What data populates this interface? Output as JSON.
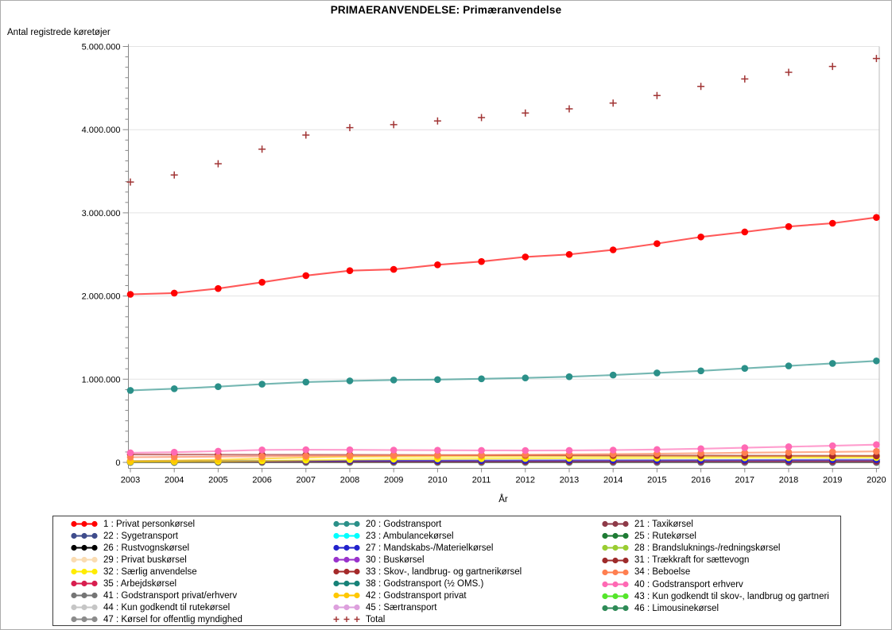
{
  "chart_data": {
    "type": "line",
    "title": "PRIMAERANVENDELSE: Primæranvendelse",
    "xlabel": "År",
    "ylabel": "Antal registrede køretøjer",
    "x": [
      2003,
      2004,
      2005,
      2006,
      2007,
      2008,
      2009,
      2010,
      2011,
      2012,
      2013,
      2014,
      2015,
      2016,
      2017,
      2018,
      2019,
      2020
    ],
    "ylim": [
      0,
      5000000
    ],
    "y_tick_labels": [
      "0",
      "1.000.000",
      "2.000.000",
      "3.000.000",
      "4.000.000",
      "5.000.000"
    ],
    "grid": "horizontal",
    "legend_position": "bottom",
    "series": [
      {
        "id": "1",
        "label": "1 : Privat personkørsel",
        "color": "#FF0000",
        "marker": "dot",
        "values": [
          2020000,
          2035000,
          2090000,
          2165000,
          2245000,
          2305000,
          2320000,
          2375000,
          2415000,
          2470000,
          2500000,
          2555000,
          2630000,
          2710000,
          2770000,
          2835000,
          2875000,
          2945000
        ]
      },
      {
        "id": "20",
        "label": "20 : Godstransport",
        "color": "#2B9089",
        "marker": "dot",
        "values": [
          865000,
          885000,
          910000,
          940000,
          965000,
          980000,
          990000,
          995000,
          1005000,
          1015000,
          1030000,
          1050000,
          1075000,
          1100000,
          1130000,
          1160000,
          1190000,
          1220000
        ]
      },
      {
        "id": "21",
        "label": "21 : Taxikørsel",
        "color": "#8E3A48",
        "marker": "dot",
        "values": [
          7000,
          7000,
          7000,
          7000,
          7000,
          7000,
          7000,
          7000,
          7000,
          7000,
          7000,
          7000,
          7000,
          7000,
          7000,
          7000,
          7000,
          7000
        ]
      },
      {
        "id": "22",
        "label": "22 : Sygetransport",
        "color": "#3F4C8C",
        "marker": "dot",
        "values": [
          1500,
          1500,
          1500,
          1500,
          1500,
          1500,
          1500,
          1500,
          1500,
          1500,
          1500,
          1500,
          1500,
          1500,
          1500,
          1500,
          1500,
          1500
        ]
      },
      {
        "id": "23",
        "label": "23 : Ambulancekørsel",
        "color": "#00FFFF",
        "marker": "dot",
        "values": [
          1000,
          1000,
          1000,
          1000,
          1000,
          1000,
          1000,
          1000,
          1000,
          1000,
          1000,
          1000,
          1000,
          1000,
          1000,
          1000,
          1000,
          1000
        ]
      },
      {
        "id": "25",
        "label": "25 : Rutekørsel",
        "color": "#1E7B34",
        "marker": "dot",
        "values": [
          8000,
          8000,
          8000,
          8000,
          8000,
          8000,
          8000,
          8000,
          8000,
          8000,
          8000,
          8000,
          8000,
          8000,
          8000,
          8000,
          8000,
          8000
        ]
      },
      {
        "id": "26",
        "label": "26 : Rustvognskørsel",
        "color": "#000000",
        "marker": "dot",
        "values": [
          600,
          600,
          600,
          600,
          600,
          600,
          600,
          600,
          600,
          600,
          600,
          600,
          600,
          600,
          600,
          600,
          600,
          600
        ]
      },
      {
        "id": "27",
        "label": "27 : Mandskabs-/Materielkørsel",
        "color": "#2222CC",
        "marker": "dot",
        "values": [
          14000,
          15000,
          16000,
          17000,
          18000,
          19000,
          20000,
          21000,
          22000,
          23000,
          24000,
          25000,
          26000,
          27000,
          28000,
          29000,
          30000,
          31000
        ]
      },
      {
        "id": "28",
        "label": "28 : Brandsluknings-/redningskørsel",
        "color": "#9ACD32",
        "marker": "dot",
        "values": [
          3000,
          3000,
          3000,
          3000,
          3000,
          3000,
          3000,
          3000,
          3000,
          3000,
          3000,
          3000,
          3000,
          3000,
          3000,
          3000,
          3000,
          3000
        ]
      },
      {
        "id": "29",
        "label": "29 : Privat buskørsel",
        "color": "#FADCB2",
        "marker": "dot",
        "values": [
          2000,
          2000,
          2000,
          2000,
          2000,
          2000,
          2000,
          2000,
          2000,
          2000,
          2000,
          2000,
          2000,
          2000,
          2000,
          2000,
          2000,
          2000
        ]
      },
      {
        "id": "30",
        "label": "30 : Buskørsel",
        "color": "#9933CC",
        "marker": "dot",
        "values": [
          12000,
          12000,
          12000,
          12000,
          12500,
          12500,
          12500,
          12500,
          12500,
          12500,
          12500,
          12500,
          12500,
          12500,
          12500,
          12500,
          12500,
          12500
        ]
      },
      {
        "id": "31",
        "label": "31 : Trækkraft for sættevogn",
        "color": "#9E2B2B",
        "marker": "dot",
        "values": [
          10000,
          10500,
          11000,
          11500,
          12000,
          12500,
          12500,
          12500,
          13000,
          13000,
          13500,
          14000,
          14500,
          15000,
          15500,
          16000,
          16000,
          16500
        ]
      },
      {
        "id": "32",
        "label": "32 : Særlig anvendelse",
        "color": "#FFEC00",
        "marker": "dot",
        "values": [
          8000,
          10000,
          13000,
          18000,
          25000,
          33000,
          38000,
          42000,
          45000,
          47000,
          49000,
          51000,
          52000,
          54000,
          55000,
          56000,
          57000,
          58000
        ]
      },
      {
        "id": "33",
        "label": "33 : Skov-, landbrug- og gartnerikørsel",
        "color": "#A52A2A",
        "marker": "dot",
        "values": [
          95000,
          94000,
          93000,
          92000,
          91000,
          90000,
          89000,
          88000,
          87000,
          86000,
          85000,
          84000,
          83000,
          82000,
          81000,
          80000,
          79000,
          78000
        ]
      },
      {
        "id": "34",
        "label": "34 : Beboelse",
        "color": "#FF7F50",
        "marker": "dot",
        "values": [
          62000,
          65000,
          68000,
          72000,
          76000,
          80000,
          83000,
          86000,
          89000,
          93000,
          96000,
          100000,
          105000,
          110000,
          116000,
          121000,
          126000,
          132000
        ]
      },
      {
        "id": "35",
        "label": "35 : Arbejdskørsel",
        "color": "#D81E4F",
        "marker": "dot",
        "values": [
          5000,
          5000,
          5000,
          5000,
          5000,
          5000,
          5000,
          5000,
          5000,
          5000,
          5000,
          5000,
          5000,
          5000,
          5000,
          5000,
          5000,
          5000
        ]
      },
      {
        "id": "38",
        "label": "38 : Godstransport (½ OMS.)",
        "color": "#178278",
        "marker": "dot",
        "values": [
          3000,
          3000,
          2800,
          2800,
          2600,
          2600,
          2400,
          2400,
          2200,
          2200,
          2000,
          2000,
          1800,
          1800,
          1600,
          1600,
          1400,
          1400
        ]
      },
      {
        "id": "40",
        "label": "40 : Godstransport erhverv",
        "color": "#FF69B4",
        "marker": "dot",
        "values": [
          115000,
          122000,
          135000,
          150000,
          152000,
          151000,
          148000,
          146000,
          144000,
          143000,
          144000,
          148000,
          155000,
          164000,
          176000,
          188000,
          200000,
          213000
        ]
      },
      {
        "id": "41",
        "label": "41 : Godstransport privat/erhverv",
        "color": "#757575",
        "marker": "dot",
        "values": [
          2000,
          2000,
          2000,
          2000,
          2000,
          2000,
          2000,
          2000,
          2000,
          2500,
          3000,
          3500,
          4500,
          5500,
          7000,
          8500,
          10000,
          11500
        ]
      },
      {
        "id": "42",
        "label": "42 : Godstransport privat",
        "color": "#FFC800",
        "marker": "dot",
        "values": [
          15000,
          22000,
          32000,
          45000,
          58000,
          68000,
          70000,
          71000,
          72000,
          72000,
          73000,
          73000,
          74000,
          74000,
          74000,
          75000,
          75000,
          76000
        ]
      },
      {
        "id": "43",
        "label": "43 : Kun godkendt til skov-, landbrug og gartneri",
        "color": "#55E62B",
        "marker": "dot",
        "values": [
          1500,
          1600,
          1700,
          1800,
          1900,
          2000,
          2000,
          2100,
          2100,
          2200,
          2200,
          2300,
          2300,
          2400,
          2400,
          2500,
          2500,
          2500
        ]
      },
      {
        "id": "44",
        "label": "44 : Kun godkendt til rutekørsel",
        "color": "#C6C6C6",
        "marker": "dot",
        "values": [
          400,
          400,
          400,
          400,
          400,
          400,
          400,
          400,
          400,
          400,
          400,
          400,
          400,
          400,
          400,
          400,
          400,
          400
        ]
      },
      {
        "id": "45",
        "label": "45 : Særtransport",
        "color": "#DDA0DD",
        "marker": "dot",
        "values": [
          4000,
          4000,
          4000,
          4000,
          4000,
          4000,
          4000,
          4000,
          4000,
          4000,
          4000,
          4000,
          4000,
          4000,
          4000,
          4000,
          4000,
          4000
        ]
      },
      {
        "id": "46",
        "label": "46 : Limousinekørsel",
        "color": "#2E8B57",
        "marker": "dot",
        "values": [
          700,
          700,
          700,
          700,
          700,
          700,
          700,
          700,
          700,
          700,
          700,
          700,
          700,
          700,
          700,
          700,
          700,
          700
        ]
      },
      {
        "id": "47",
        "label": "47 : Kørsel for offentlig myndighed",
        "color": "#8C8C8C",
        "marker": "dot",
        "values": [
          1000,
          1000,
          1000,
          1000,
          1000,
          1000,
          1000,
          1000,
          1000,
          1000,
          1000,
          1000,
          1000,
          1000,
          1000,
          1000,
          1000,
          1000
        ]
      },
      {
        "id": "total",
        "label": "Total",
        "color": "#A13434",
        "marker": "plus",
        "values": [
          3370000,
          3455000,
          3590000,
          3765000,
          3935000,
          4025000,
          4060000,
          4105000,
          4145000,
          4200000,
          4250000,
          4320000,
          4410000,
          4520000,
          4610000,
          4690000,
          4760000,
          4855000
        ]
      }
    ]
  },
  "legend": {
    "columns": [
      [
        "1",
        "22",
        "26",
        "29",
        "32",
        "35",
        "41",
        "44",
        "47"
      ],
      [
        "20",
        "23",
        "27",
        "30",
        "33",
        "38",
        "42",
        "45",
        "total"
      ],
      [
        "21",
        "25",
        "28",
        "31",
        "34",
        "40",
        "43",
        "46"
      ]
    ]
  },
  "colors": {
    "axis": "#888888",
    "gridline": "#E3E3E3",
    "frame": "#BBBBBB",
    "legend_border": "#3c3c3c"
  }
}
